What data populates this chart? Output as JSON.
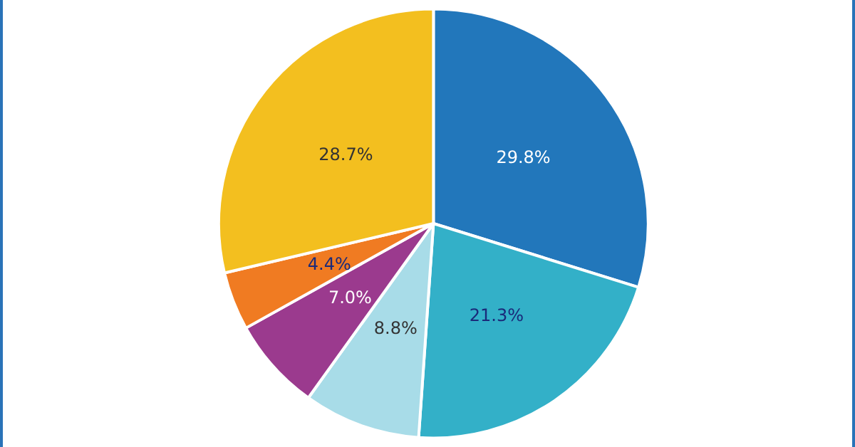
{
  "chart_data": {
    "type": "pie",
    "categories": [
      null,
      null,
      null,
      null,
      null,
      null
    ],
    "values": [
      29.8,
      21.3,
      8.8,
      7.0,
      4.4,
      28.7
    ],
    "colors": [
      "#2277bb",
      "#33b0c8",
      "#a8dce8",
      "#9b3a8e",
      "#f07b22",
      "#f3bf1f"
    ],
    "value_labels": [
      "29.8%",
      "21.3%",
      "8.8%",
      "7.0%",
      "4.4%",
      "28.7%"
    ]
  }
}
